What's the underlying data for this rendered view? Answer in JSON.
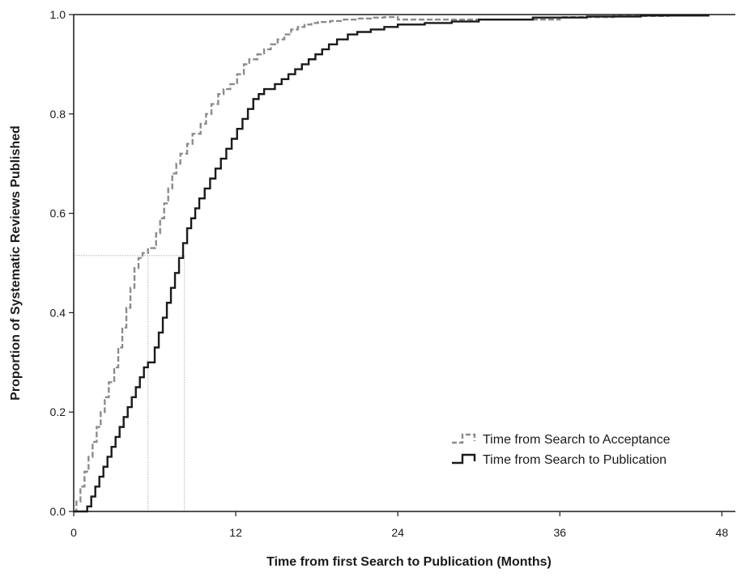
{
  "chart_data": {
    "type": "line",
    "title": "",
    "xlabel": "Time from first Search to Publication (Months)",
    "ylabel": "Proportion of Systematic Reviews Published",
    "xlim": [
      0,
      49
    ],
    "ylim": [
      0,
      1
    ],
    "x_ticks": [
      "0",
      "12",
      "24",
      "36",
      "48"
    ],
    "y_ticks": [
      "0.0",
      "0.2",
      "0.4",
      "0.6",
      "0.8",
      "1.0"
    ],
    "grid": false,
    "legend_position": "bottom-right",
    "series": [
      {
        "name": "Time from Search to Acceptance",
        "color": "#8c8c8c",
        "dash": "dashed",
        "step": true,
        "x": [
          0,
          0.2,
          0.5,
          0.8,
          1.1,
          1.4,
          1.7,
          2.0,
          2.3,
          2.6,
          3.0,
          3.3,
          3.6,
          3.9,
          4.2,
          4.5,
          4.8,
          5.1,
          5.4,
          5.5,
          6.1,
          6.4,
          6.7,
          7.0,
          7.3,
          7.6,
          7.9,
          8.4,
          8.8,
          9.4,
          9.8,
          10.2,
          10.7,
          11.1,
          11.6,
          12.1,
          12.6,
          13.0,
          13.6,
          14.1,
          14.6,
          15.1,
          15.6,
          16.1,
          16.6,
          17.1,
          17.6,
          18.1,
          19.0,
          20.0,
          21.0,
          22.0,
          23.0,
          24.0,
          26.0,
          28.0,
          30.0,
          33.0,
          36.0,
          40.0,
          44.0,
          47.0
        ],
        "y": [
          0.0,
          0.02,
          0.05,
          0.08,
          0.11,
          0.14,
          0.17,
          0.2,
          0.23,
          0.26,
          0.29,
          0.33,
          0.37,
          0.41,
          0.45,
          0.49,
          0.51,
          0.52,
          0.52,
          0.53,
          0.56,
          0.59,
          0.62,
          0.65,
          0.68,
          0.7,
          0.72,
          0.74,
          0.76,
          0.78,
          0.8,
          0.82,
          0.84,
          0.85,
          0.86,
          0.88,
          0.9,
          0.91,
          0.92,
          0.93,
          0.94,
          0.95,
          0.96,
          0.97,
          0.975,
          0.98,
          0.983,
          0.985,
          0.987,
          0.99,
          0.992,
          0.994,
          0.995,
          0.99,
          0.99,
          0.99,
          0.99,
          0.99,
          0.995,
          0.997,
          0.998,
          1.0
        ]
      },
      {
        "name": "Time from Search to Publication",
        "color": "#1a1a1a",
        "dash": "solid",
        "step": true,
        "x": [
          0,
          1.0,
          1.3,
          1.6,
          1.9,
          2.2,
          2.5,
          2.8,
          3.1,
          3.4,
          3.7,
          4.0,
          4.3,
          4.6,
          4.9,
          5.2,
          5.5,
          6.0,
          6.3,
          6.6,
          6.9,
          7.2,
          7.5,
          7.8,
          8.1,
          8.4,
          8.7,
          9.0,
          9.3,
          9.7,
          10.1,
          10.5,
          10.9,
          11.3,
          11.7,
          12.1,
          12.5,
          12.9,
          13.3,
          13.7,
          14.1,
          14.5,
          14.9,
          15.4,
          15.9,
          16.4,
          16.9,
          17.4,
          17.9,
          18.4,
          18.9,
          19.5,
          20.3,
          21.0,
          22.0,
          23.0,
          24.0,
          26.0,
          28.0,
          30.0,
          34.0,
          38.0,
          42.0,
          47.0
        ],
        "y": [
          0.0,
          0.01,
          0.03,
          0.05,
          0.07,
          0.09,
          0.11,
          0.13,
          0.15,
          0.17,
          0.19,
          0.21,
          0.23,
          0.25,
          0.27,
          0.29,
          0.3,
          0.33,
          0.36,
          0.39,
          0.42,
          0.45,
          0.48,
          0.51,
          0.54,
          0.57,
          0.59,
          0.61,
          0.63,
          0.65,
          0.67,
          0.69,
          0.71,
          0.73,
          0.75,
          0.77,
          0.79,
          0.81,
          0.83,
          0.84,
          0.85,
          0.85,
          0.86,
          0.87,
          0.88,
          0.89,
          0.9,
          0.91,
          0.92,
          0.93,
          0.94,
          0.95,
          0.96,
          0.965,
          0.97,
          0.975,
          0.98,
          0.983,
          0.986,
          0.99,
          0.994,
          0.996,
          0.998,
          1.0
        ]
      }
    ],
    "median_reference_lines": [
      {
        "y": 0.515,
        "x_series": [
          5.5,
          8.2
        ]
      }
    ]
  }
}
